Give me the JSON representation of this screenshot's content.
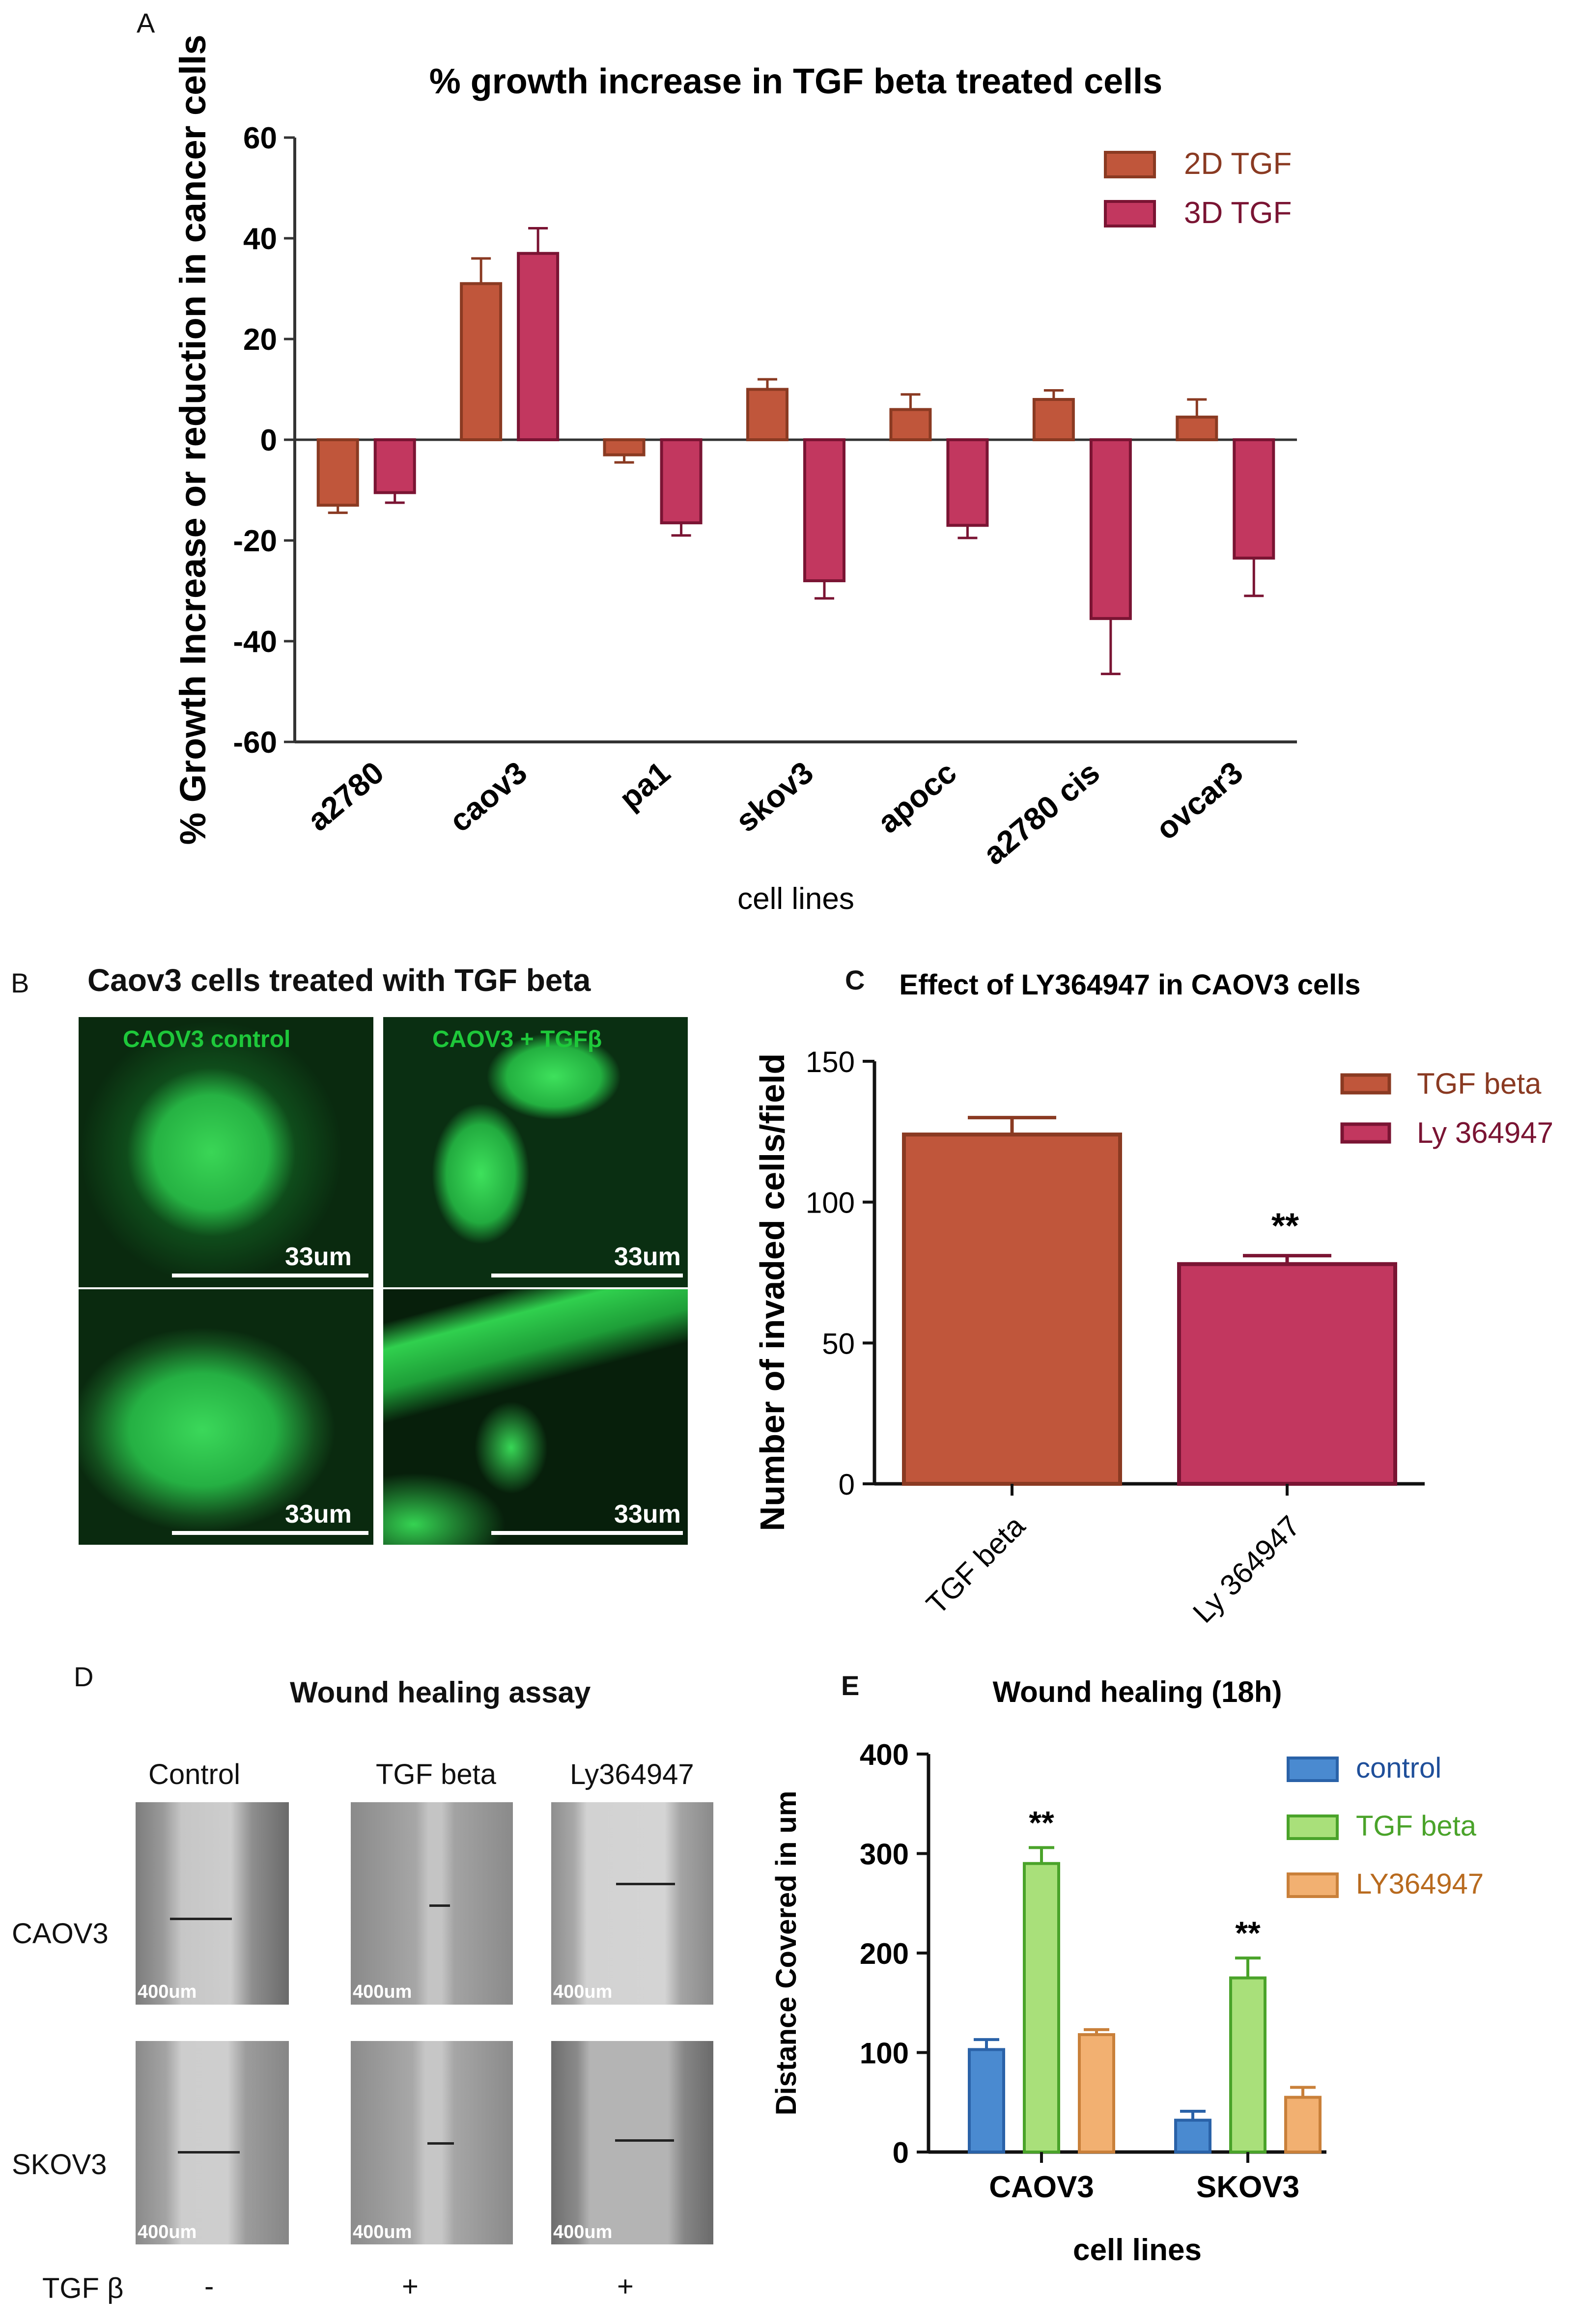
{
  "panels": {
    "A": "A",
    "B": "B",
    "C": "C",
    "D": "D",
    "E": "E"
  },
  "colors": {
    "orange": "#c0563b",
    "orange_edge": "#8a3a22",
    "crimson": "#c2375f",
    "crimson_edge": "#7a1433",
    "blue": "#4a8ad0",
    "green": "#a9e07a",
    "tan": "#f2b071",
    "fluo_green": "#2fdc4f"
  },
  "chart_data": [
    {
      "id": "A",
      "type": "bar",
      "title": "% growth increase in TGF beta treated cells",
      "xlabel": "cell lines",
      "ylabel": "% Growth Increase or reduction in cancer cells",
      "ylim": [
        -60,
        60
      ],
      "yticks": [
        -60,
        -40,
        -20,
        0,
        20,
        40,
        60
      ],
      "categories": [
        "a2780",
        "caov3",
        "pa1",
        "skov3",
        "apocc",
        "a2780 cis",
        "ovcar3"
      ],
      "series": [
        {
          "name": "2D TGF",
          "values": [
            -13,
            31,
            -3,
            10,
            6,
            8,
            4.5
          ],
          "errors": [
            1.5,
            5,
            1.5,
            2,
            3,
            1.8,
            3.5
          ]
        },
        {
          "name": "3D TGF",
          "values": [
            -10.5,
            37,
            -16.5,
            -28,
            -17,
            -35.5,
            -23.5
          ],
          "errors": [
            2,
            5,
            2.5,
            3.5,
            2.5,
            11,
            7.5
          ]
        }
      ],
      "legend": "top-right"
    },
    {
      "id": "C",
      "type": "bar",
      "title": "Effect of LY364947 in CAOV3 cells",
      "ylabel": "Number of invaded cells/field",
      "ylim": [
        0,
        150
      ],
      "yticks": [
        0,
        50,
        100,
        150
      ],
      "categories": [
        "TGF beta",
        "Ly 364947"
      ],
      "values": [
        124,
        78
      ],
      "errors": [
        6,
        3
      ],
      "annotations": [
        "",
        "**"
      ],
      "legend_entries": [
        "TGF beta",
        "Ly 364947"
      ]
    },
    {
      "id": "E",
      "type": "bar",
      "title": "Wound healing (18h)",
      "xlabel": "cell lines",
      "ylabel": "Distance Covered in um",
      "ylim": [
        0,
        400
      ],
      "yticks": [
        0,
        100,
        200,
        300,
        400
      ],
      "categories": [
        "CAOV3",
        "SKOV3"
      ],
      "series": [
        {
          "name": "control",
          "values": [
            103,
            32
          ],
          "errors": [
            10,
            9
          ]
        },
        {
          "name": "TGF beta",
          "values": [
            290,
            175
          ],
          "errors": [
            16,
            20
          ]
        },
        {
          "name": "LY364947",
          "values": [
            118,
            55
          ],
          "errors": [
            5,
            10
          ]
        }
      ],
      "annotations": [
        {
          "category": "CAOV3",
          "series": "TGF beta",
          "text": "**"
        },
        {
          "category": "SKOV3",
          "series": "TGF beta",
          "text": "**"
        }
      ],
      "legend": "top-right"
    }
  ],
  "panel_b": {
    "title": "Caov3 cells treated with TGF beta",
    "control_label": "CAOV3 control",
    "tgf_label": "CAOV3 + TGFβ",
    "scale": "33um"
  },
  "panel_d": {
    "title": "Wound healing assay",
    "columns": [
      "Control",
      "TGF beta",
      "Ly364947"
    ],
    "rows": [
      "CAOV3",
      "SKOV3"
    ],
    "scale": "400um",
    "tgf_label": "TGF β",
    "tgf_signs": [
      "-",
      "+",
      "+"
    ]
  }
}
